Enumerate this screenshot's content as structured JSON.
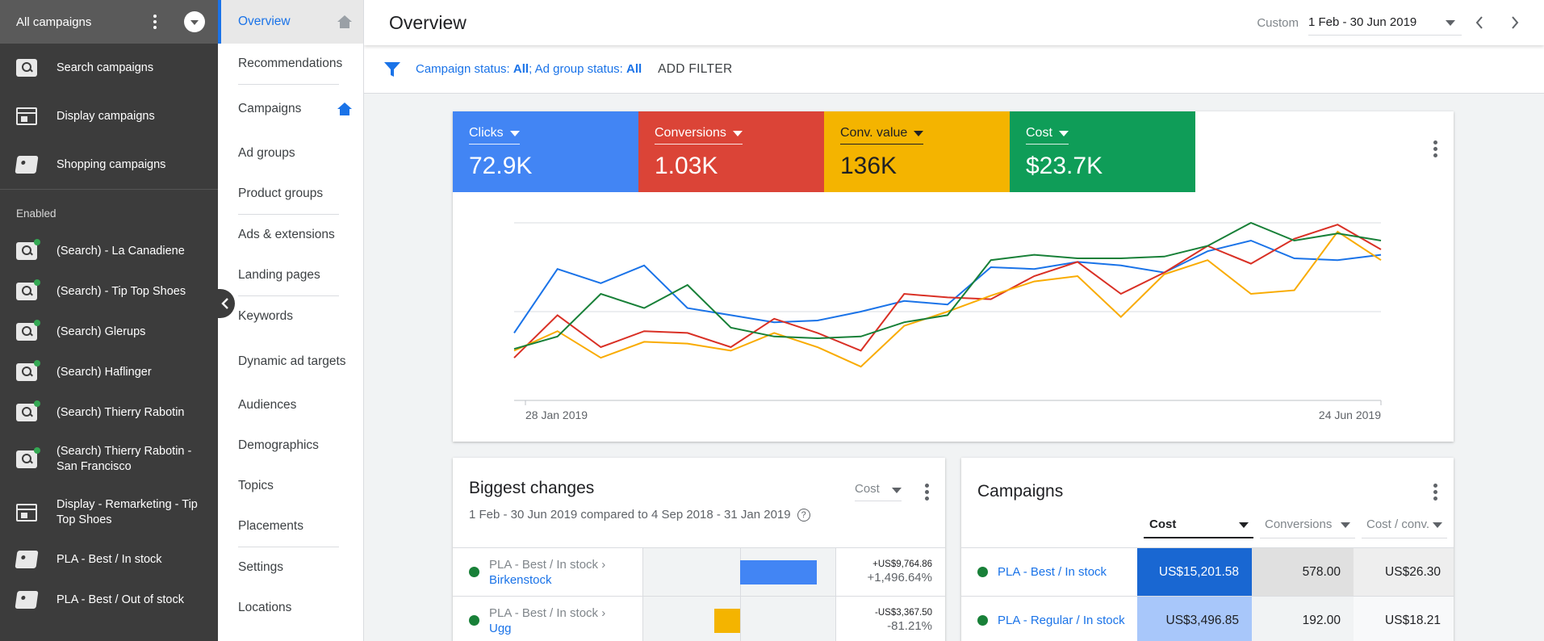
{
  "sidebar": {
    "account_title": "All campaigns",
    "type_items": [
      {
        "label": "Search campaigns",
        "icon": "search-icon"
      },
      {
        "label": "Display campaigns",
        "icon": "display-icon"
      },
      {
        "label": "Shopping campaigns",
        "icon": "shopping-tag-icon"
      }
    ],
    "section_label": "Enabled",
    "campaigns": [
      {
        "label": "(Search) - La Canadiene",
        "icon": "search-icon"
      },
      {
        "label": "(Search) - Tip Top Shoes",
        "icon": "search-icon"
      },
      {
        "label": "(Search) Glerups",
        "icon": "search-icon"
      },
      {
        "label": "(Search) Haflinger",
        "icon": "search-icon"
      },
      {
        "label": "(Search) Thierry Rabotin",
        "icon": "search-icon"
      },
      {
        "label": "(Search) Thierry Rabotin - San Francisco",
        "icon": "search-icon"
      },
      {
        "label": "Display - Remarketing - Tip Top Shoes",
        "icon": "display-icon"
      },
      {
        "label": "PLA - Best / In stock",
        "icon": "shopping-tag-icon"
      },
      {
        "label": "PLA - Best / Out of stock",
        "icon": "shopping-tag-icon"
      }
    ]
  },
  "nav": {
    "items": [
      {
        "label": "Overview"
      },
      {
        "label": "Recommendations"
      },
      {
        "label": "Campaigns"
      },
      {
        "label": "Ad groups"
      },
      {
        "label": "Product groups"
      },
      {
        "label": "Ads & extensions"
      },
      {
        "label": "Landing pages"
      },
      {
        "label": "Keywords"
      },
      {
        "label": "Dynamic ad targets"
      },
      {
        "label": "Audiences"
      },
      {
        "label": "Demographics"
      },
      {
        "label": "Topics"
      },
      {
        "label": "Placements"
      },
      {
        "label": "Settings"
      },
      {
        "label": "Locations"
      }
    ]
  },
  "header": {
    "title": "Overview",
    "date_mode": "Custom",
    "date_range": "1 Feb - 30 Jun 2019"
  },
  "filter": {
    "campaign_status_label": "Campaign status:",
    "campaign_status_value": "All",
    "separator": ";",
    "adgroup_status_label": "Ad group status:",
    "adgroup_status_value": "All",
    "add_filter": "ADD FILTER"
  },
  "metrics": [
    {
      "label": "Clicks",
      "value": "72.9K",
      "color": "#4285f4"
    },
    {
      "label": "Conversions",
      "value": "1.03K",
      "color": "#db4437"
    },
    {
      "label": "Conv. value",
      "value": "136K",
      "color": "#f4b400"
    },
    {
      "label": "Cost",
      "value": "$23.7K",
      "color": "#0f9d58"
    }
  ],
  "chart_data": {
    "type": "line",
    "x_start_label": "28 Jan 2019",
    "x_end_label": "24 Jun 2019",
    "y_scale": "relative",
    "grid": true,
    "series": [
      {
        "name": "Clicks",
        "color": "#1a73e8",
        "values": [
          0.38,
          0.74,
          0.66,
          0.76,
          0.52,
          0.48,
          0.44,
          0.45,
          0.5,
          0.56,
          0.54,
          0.75,
          0.74,
          0.78,
          0.76,
          0.72,
          0.84,
          0.9,
          0.8,
          0.79,
          0.82
        ]
      },
      {
        "name": "Conversions",
        "color": "#d93025",
        "values": [
          0.24,
          0.48,
          0.3,
          0.39,
          0.38,
          0.3,
          0.46,
          0.38,
          0.28,
          0.6,
          0.58,
          0.57,
          0.7,
          0.78,
          0.6,
          0.72,
          0.87,
          0.77,
          0.91,
          0.99,
          0.85
        ]
      },
      {
        "name": "Conv. value",
        "color": "#f9ab00",
        "values": [
          0.28,
          0.39,
          0.24,
          0.33,
          0.32,
          0.28,
          0.38,
          0.3,
          0.19,
          0.42,
          0.5,
          0.59,
          0.67,
          0.7,
          0.47,
          0.71,
          0.79,
          0.6,
          0.62,
          0.95,
          0.79
        ]
      },
      {
        "name": "Cost",
        "color": "#188038",
        "values": [
          0.29,
          0.36,
          0.6,
          0.52,
          0.65,
          0.41,
          0.36,
          0.35,
          0.36,
          0.44,
          0.48,
          0.79,
          0.82,
          0.8,
          0.8,
          0.81,
          0.87,
          1.0,
          0.9,
          0.94,
          0.9
        ]
      }
    ]
  },
  "biggest_changes": {
    "title": "Biggest changes",
    "subtitle": "1 Feb - 30 Jun 2019 compared to 4 Sep 2018 - 31 Jan 2019",
    "metric": "Cost",
    "rows": [
      {
        "parent": "PLA - Best / In stock ›",
        "child": "Birkenstock",
        "abs": "+US$9,764.86",
        "pct": "+1,496.64%",
        "direction": "up",
        "change_fraction": 0.79,
        "color": "#4285f4"
      },
      {
        "parent": "PLA - Best / In stock ›",
        "child": "Ugg",
        "abs": "-US$3,367.50",
        "pct": "-81.21%",
        "direction": "down",
        "change_fraction": 0.27,
        "color": "#f4b400"
      }
    ]
  },
  "campaigns_card": {
    "title": "Campaigns",
    "columns": [
      "Cost",
      "Conversions",
      "Cost / conv."
    ],
    "rows": [
      {
        "name": "PLA - Best / In stock",
        "cost": "US$15,201.58",
        "conversions": "578.00",
        "cost_conv": "US$26.30",
        "cost_color": "#1967d2",
        "conv_color": "#e0e0e0",
        "cc_color": "#eeeeee"
      },
      {
        "name": "PLA - Regular / In stock",
        "cost": "US$3,496.85",
        "conversions": "192.00",
        "cost_conv": "US$18.21",
        "cost_color": "#a8c7fa",
        "conv_color": "#f1f3f4",
        "cc_color": "#f8f9fa"
      }
    ]
  }
}
